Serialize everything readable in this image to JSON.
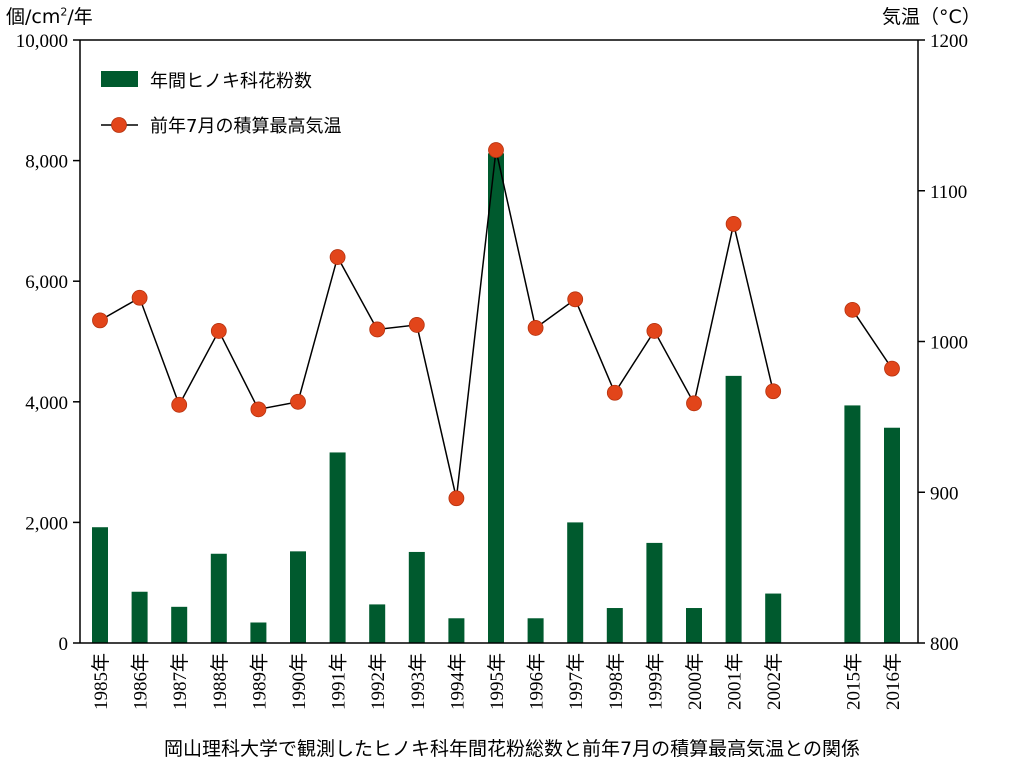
{
  "left_axis_label": {
    "prefix": "個/cm",
    "sup": "2",
    "suffix": "/年"
  },
  "right_axis_label": "気温（°C）",
  "caption": "岡山理科大学で観測したヒノキ科年間花粉総数と前年7月の積算最高気温との関係",
  "legend": {
    "bar": "年間ヒノキ科花粉数",
    "line": "前年7月の積算最高気温"
  },
  "colors": {
    "bar": "#005a2e",
    "marker": "#e2451a",
    "line": "#000000"
  },
  "chart_data": {
    "type": "bar+line",
    "categories": [
      "1985年",
      "1986年",
      "1987年",
      "1988年",
      "1989年",
      "1990年",
      "1991年",
      "1992年",
      "1993年",
      "1994年",
      "1995年",
      "1996年",
      "1997年",
      "1998年",
      "1999年",
      "2000年",
      "2001年",
      "2002年",
      "",
      "2015年",
      "2016年"
    ],
    "left_axis": {
      "range": [
        0,
        10000
      ],
      "ticks": [
        0,
        2000,
        4000,
        6000,
        8000,
        10000
      ],
      "tick_labels": [
        "0",
        "2,000",
        "4,000",
        "6,000",
        "8,000",
        "10,000"
      ]
    },
    "right_axis": {
      "range": [
        800,
        1200
      ],
      "ticks": [
        800,
        900,
        1000,
        1100,
        1200
      ],
      "tick_labels": [
        "800",
        "900",
        "1000",
        "1100",
        "1200"
      ]
    },
    "series": [
      {
        "name": "年間ヒノキ科花粉数",
        "type": "bar",
        "axis": "left",
        "values": [
          1920,
          850,
          600,
          1480,
          340,
          1520,
          3160,
          640,
          1510,
          410,
          8120,
          410,
          2000,
          580,
          1660,
          580,
          4430,
          820,
          null,
          3940,
          3570
        ]
      },
      {
        "name": "前年7月の積算最高気温",
        "type": "line",
        "axis": "right",
        "values": [
          1014,
          1029,
          958,
          1007,
          955,
          960,
          1056,
          1008,
          1011,
          896,
          1127,
          1009,
          1028,
          966,
          1007,
          959,
          1078,
          967,
          null,
          1021,
          982
        ],
        "segments": [
          [
            0,
            17
          ],
          [
            19,
            20
          ]
        ]
      }
    ],
    "grid": false,
    "legend_position": "top-left"
  }
}
